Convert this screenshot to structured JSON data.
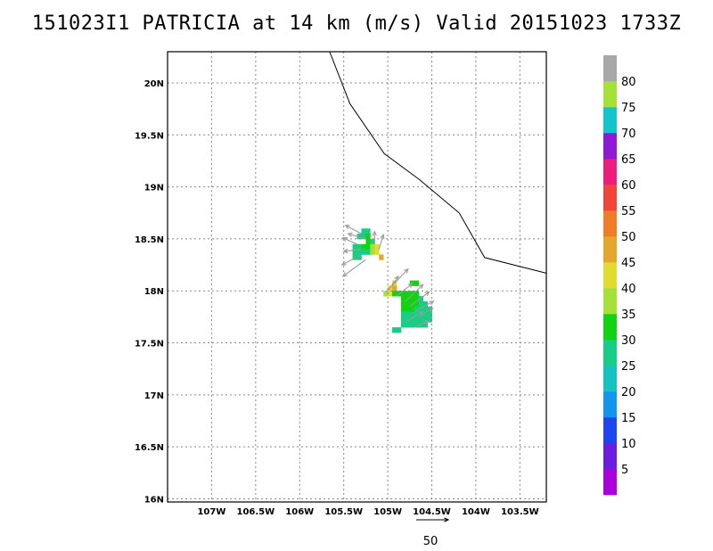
{
  "title": "151023I1 PATRICIA at 14 km (m/s) Valid 20151023 1733Z",
  "map": {
    "lon_range": [
      -107.5,
      -103.2
    ],
    "lat_range": [
      15.97,
      20.3
    ],
    "lon_ticks": [
      {
        "v": -107.0,
        "label": "107W"
      },
      {
        "v": -106.5,
        "label": "106.5W"
      },
      {
        "v": -106.0,
        "label": "106W"
      },
      {
        "v": -105.5,
        "label": "105.5W"
      },
      {
        "v": -105.0,
        "label": "105W"
      },
      {
        "v": -104.5,
        "label": "104.5W"
      },
      {
        "v": -104.0,
        "label": "104W"
      },
      {
        "v": -103.5,
        "label": "103.5W"
      }
    ],
    "lat_ticks": [
      {
        "v": 16.0,
        "label": "16N"
      },
      {
        "v": 16.5,
        "label": "16.5N"
      },
      {
        "v": 17.0,
        "label": "17N"
      },
      {
        "v": 17.5,
        "label": "17.5N"
      },
      {
        "v": 18.0,
        "label": "18N"
      },
      {
        "v": 18.5,
        "label": "18.5N"
      },
      {
        "v": 19.0,
        "label": "19N"
      },
      {
        "v": 19.5,
        "label": "19.5N"
      },
      {
        "v": 20.0,
        "label": "20N"
      }
    ],
    "coastline": [
      [
        -105.66,
        20.3
      ],
      [
        -105.43,
        19.8
      ],
      [
        -105.04,
        19.32
      ],
      [
        -104.64,
        19.07
      ],
      [
        -104.19,
        18.75
      ],
      [
        -103.9,
        18.32
      ],
      [
        -103.2,
        18.17
      ]
    ],
    "cell_size_deg": 0.05,
    "cells": [
      [
        -105.3,
        18.55,
        25
      ],
      [
        -105.25,
        18.55,
        25
      ],
      [
        -105.35,
        18.5,
        25
      ],
      [
        -105.3,
        18.5,
        25
      ],
      [
        -105.25,
        18.5,
        32
      ],
      [
        -105.25,
        18.45,
        30
      ],
      [
        -105.2,
        18.45,
        28
      ],
      [
        -105.4,
        18.4,
        25
      ],
      [
        -105.35,
        18.4,
        25
      ],
      [
        -105.3,
        18.4,
        30
      ],
      [
        -105.25,
        18.4,
        30
      ],
      [
        -105.2,
        18.4,
        36
      ],
      [
        -105.15,
        18.4,
        40
      ],
      [
        -105.4,
        18.35,
        25
      ],
      [
        -105.35,
        18.35,
        25
      ],
      [
        -105.3,
        18.35,
        27
      ],
      [
        -105.25,
        18.35,
        28
      ],
      [
        -105.2,
        18.35,
        35
      ],
      [
        -105.15,
        18.35,
        40
      ],
      [
        -105.4,
        18.3,
        25
      ],
      [
        -105.35,
        18.3,
        25
      ],
      [
        -105.1,
        18.3,
        45
      ],
      [
        -104.95,
        18.05,
        40
      ],
      [
        -105.0,
        18.0,
        40
      ],
      [
        -104.95,
        18.0,
        45
      ],
      [
        -104.75,
        18.05,
        30
      ],
      [
        -104.7,
        18.05,
        30
      ],
      [
        -105.05,
        17.95,
        35
      ],
      [
        -105.0,
        17.95,
        40
      ],
      [
        -104.95,
        17.95,
        32
      ],
      [
        -104.9,
        17.95,
        32
      ],
      [
        -104.85,
        17.95,
        32
      ],
      [
        -104.8,
        17.95,
        32
      ],
      [
        -104.75,
        17.95,
        30
      ],
      [
        -104.7,
        17.95,
        30
      ],
      [
        -104.85,
        17.9,
        30
      ],
      [
        -104.8,
        17.9,
        30
      ],
      [
        -104.75,
        17.9,
        30
      ],
      [
        -104.7,
        17.9,
        30
      ],
      [
        -104.65,
        17.9,
        28
      ],
      [
        -104.85,
        17.85,
        30
      ],
      [
        -104.8,
        17.85,
        30
      ],
      [
        -104.75,
        17.85,
        32
      ],
      [
        -104.7,
        17.85,
        30
      ],
      [
        -104.65,
        17.85,
        27
      ],
      [
        -104.6,
        17.85,
        27
      ],
      [
        -104.85,
        17.8,
        30
      ],
      [
        -104.8,
        17.8,
        30
      ],
      [
        -104.75,
        17.8,
        30
      ],
      [
        -104.7,
        17.8,
        27
      ],
      [
        -104.65,
        17.8,
        27
      ],
      [
        -104.6,
        17.8,
        25
      ],
      [
        -104.55,
        17.8,
        25
      ],
      [
        -104.85,
        17.75,
        25
      ],
      [
        -104.8,
        17.75,
        25
      ],
      [
        -104.75,
        17.75,
        25
      ],
      [
        -104.7,
        17.75,
        25
      ],
      [
        -104.65,
        17.75,
        25
      ],
      [
        -104.6,
        17.75,
        25
      ],
      [
        -104.55,
        17.75,
        25
      ],
      [
        -104.85,
        17.7,
        25
      ],
      [
        -104.8,
        17.7,
        25
      ],
      [
        -104.75,
        17.7,
        25
      ],
      [
        -104.7,
        17.7,
        25
      ],
      [
        -104.65,
        17.7,
        25
      ],
      [
        -104.6,
        17.7,
        25
      ],
      [
        -104.55,
        17.7,
        25
      ],
      [
        -104.85,
        17.65,
        25
      ],
      [
        -104.8,
        17.65,
        25
      ],
      [
        -104.75,
        17.65,
        25
      ],
      [
        -104.7,
        17.65,
        25
      ],
      [
        -104.65,
        17.65,
        25
      ],
      [
        -104.6,
        17.65,
        25
      ],
      [
        -104.95,
        17.6,
        25
      ],
      [
        -104.9,
        17.6,
        25
      ]
    ],
    "vectors": [
      [
        -105.3,
        18.55,
        -0.18,
        0.08
      ],
      [
        -105.25,
        18.5,
        -0.2,
        0.05
      ],
      [
        -105.35,
        18.45,
        -0.16,
        0.06
      ],
      [
        -105.3,
        18.4,
        -0.2,
        -0.02
      ],
      [
        -105.3,
        18.35,
        -0.22,
        -0.1
      ],
      [
        -105.25,
        18.3,
        -0.26,
        -0.16
      ],
      [
        -105.15,
        18.45,
        0.0,
        0.12
      ],
      [
        -105.1,
        18.4,
        0.05,
        0.14
      ],
      [
        -105.0,
        18.0,
        0.12,
        0.14
      ],
      [
        -104.95,
        18.05,
        0.18,
        0.16
      ],
      [
        -104.9,
        17.95,
        0.18,
        0.12
      ],
      [
        -104.8,
        17.9,
        0.2,
        0.16
      ],
      [
        -104.75,
        17.85,
        0.22,
        0.14
      ],
      [
        -104.7,
        17.8,
        0.22,
        0.1
      ],
      [
        -104.65,
        17.75,
        0.16,
        0.08
      ],
      [
        -104.8,
        17.7,
        0.2,
        0.1
      ],
      [
        -104.7,
        17.65,
        0.16,
        0.06
      ]
    ]
  },
  "colorbar": {
    "levels": [
      {
        "color": "#aa00dd",
        "label": "5"
      },
      {
        "color": "#6a1fe0",
        "label": "10"
      },
      {
        "color": "#1e45f0",
        "label": "15"
      },
      {
        "color": "#1196f0",
        "label": "20"
      },
      {
        "color": "#14c2c2",
        "label": "25"
      },
      {
        "color": "#16cf84",
        "label": "30"
      },
      {
        "color": "#12d313",
        "label": "35"
      },
      {
        "color": "#a6e03a",
        "label": "40"
      },
      {
        "color": "#e0dc30",
        "label": "45"
      },
      {
        "color": "#e6a52c",
        "label": "50"
      },
      {
        "color": "#f07c28",
        "label": "55"
      },
      {
        "color": "#f2453a",
        "label": "60"
      },
      {
        "color": "#ec1d7c",
        "label": "65"
      },
      {
        "color": "#8f1ad6",
        "label": "70"
      },
      {
        "color": "#12c4cc",
        "label": "75"
      },
      {
        "color": "#a6e03a",
        "label": "80"
      },
      {
        "color": "#a8a8a8",
        "label": ""
      }
    ]
  },
  "reference_vector": {
    "label": "50"
  }
}
